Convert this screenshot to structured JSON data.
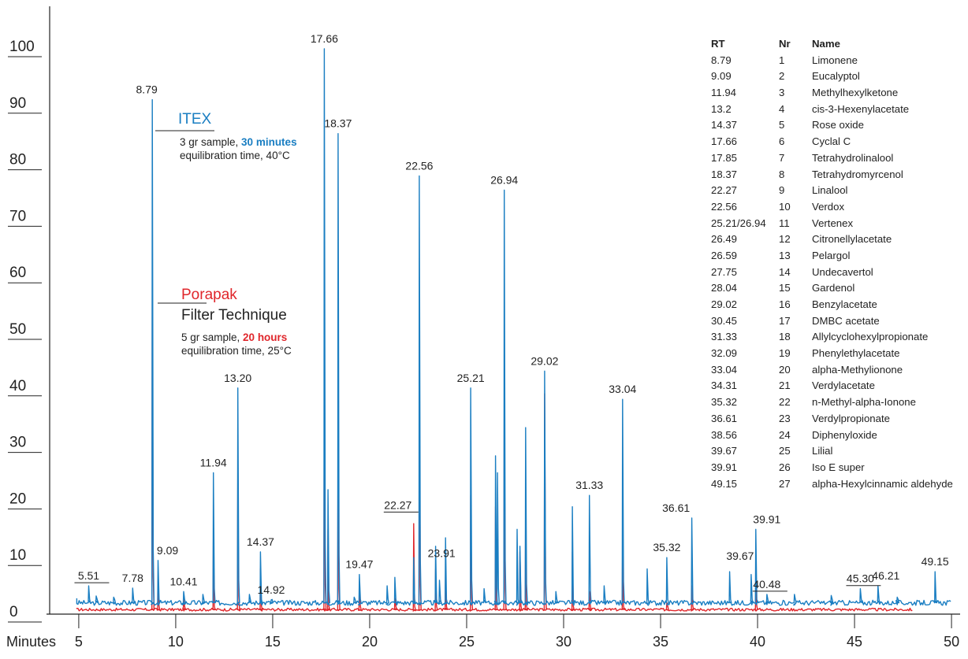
{
  "colors": {
    "itex": "#1a7ec2",
    "porapak": "#e0262b",
    "axis": "#222222"
  },
  "chart_data": {
    "type": "line",
    "xlabel": "Minutes",
    "xticks": [
      5,
      10,
      15,
      20,
      25,
      30,
      35,
      40,
      45,
      50
    ],
    "yticks": [
      0,
      10,
      20,
      30,
      40,
      50,
      60,
      70,
      80,
      90,
      100
    ],
    "xlim": [
      3.5,
      50.2
    ],
    "ylim": [
      0,
      100
    ],
    "series": [
      {
        "name": "ITEX",
        "baseline": 2,
        "peaks": [
          [
            5.51,
            5
          ],
          [
            5.9,
            3.2
          ],
          [
            6.8,
            3
          ],
          [
            7.78,
            4.6
          ],
          [
            8.79,
            91
          ],
          [
            9.09,
            9.5
          ],
          [
            10.41,
            4
          ],
          [
            11.4,
            3.5
          ],
          [
            11.94,
            25
          ],
          [
            13.2,
            40
          ],
          [
            13.8,
            3.5
          ],
          [
            14.37,
            11
          ],
          [
            14.92,
            2.5
          ],
          [
            17.66,
            100
          ],
          [
            17.85,
            22
          ],
          [
            18.37,
            85
          ],
          [
            19.2,
            3
          ],
          [
            19.47,
            7
          ],
          [
            20.9,
            5
          ],
          [
            21.3,
            6.5
          ],
          [
            22.27,
            10
          ],
          [
            22.56,
            77.5
          ],
          [
            23.4,
            12
          ],
          [
            23.6,
            6
          ],
          [
            23.91,
            13.5
          ],
          [
            25.21,
            40
          ],
          [
            25.9,
            4.5
          ],
          [
            26.49,
            28
          ],
          [
            26.59,
            25
          ],
          [
            26.94,
            75
          ],
          [
            27.6,
            15
          ],
          [
            27.75,
            12
          ],
          [
            28.04,
            33
          ],
          [
            29.02,
            43
          ],
          [
            29.6,
            4
          ],
          [
            30.45,
            19
          ],
          [
            31.33,
            21
          ],
          [
            32.09,
            5
          ],
          [
            33.04,
            38
          ],
          [
            34.31,
            8
          ],
          [
            35.32,
            10
          ],
          [
            36.61,
            17
          ],
          [
            38.56,
            7.5
          ],
          [
            39.67,
            7
          ],
          [
            39.91,
            15
          ],
          [
            40.48,
            3.5
          ],
          [
            41.9,
            3.5
          ],
          [
            43.8,
            3.3
          ],
          [
            45.3,
            4.5
          ],
          [
            46.21,
            5
          ],
          [
            47.2,
            3
          ],
          [
            49.15,
            7.5
          ]
        ]
      },
      {
        "name": "Porapak",
        "baseline": 0.8,
        "peaks": [
          [
            8.79,
            58
          ],
          [
            9.09,
            6
          ],
          [
            10.41,
            2.5
          ],
          [
            11.94,
            13.5
          ],
          [
            13.2,
            24
          ],
          [
            14.37,
            8
          ],
          [
            17.66,
            44
          ],
          [
            17.85,
            15
          ],
          [
            18.37,
            36
          ],
          [
            19.47,
            4
          ],
          [
            21.3,
            2.8
          ],
          [
            22.27,
            16
          ],
          [
            22.56,
            43
          ],
          [
            23.4,
            8
          ],
          [
            23.91,
            7
          ],
          [
            25.21,
            21
          ],
          [
            26.49,
            19
          ],
          [
            26.94,
            36
          ],
          [
            27.75,
            11
          ],
          [
            28.04,
            18
          ],
          [
            29.02,
            39
          ],
          [
            30.45,
            11
          ],
          [
            31.33,
            4
          ],
          [
            33.04,
            12
          ],
          [
            35.32,
            2
          ],
          [
            36.61,
            5
          ],
          [
            39.91,
            5
          ]
        ]
      }
    ],
    "peak_labels": [
      {
        "text": "5.51",
        "x": 5.51,
        "y": 5,
        "dx": 0,
        "under": true
      },
      {
        "text": "7.78",
        "x": 7.78,
        "y": 4.6,
        "dx": 0,
        "under": false
      },
      {
        "text": "8.79",
        "x": 8.79,
        "y": 91,
        "dx": -7,
        "under": false
      },
      {
        "text": "9.09",
        "x": 9.09,
        "y": 9.5,
        "dx": 12,
        "under": false
      },
      {
        "text": "10.41",
        "x": 10.41,
        "y": 4,
        "dx": 0,
        "under": false
      },
      {
        "text": "11.94",
        "x": 11.94,
        "y": 25,
        "dx": 0,
        "under": false
      },
      {
        "text": "13.20",
        "x": 13.2,
        "y": 40,
        "dx": 0,
        "under": false
      },
      {
        "text": "14.37",
        "x": 14.37,
        "y": 11,
        "dx": 0,
        "under": false
      },
      {
        "text": "14.92",
        "x": 14.92,
        "y": 2.5,
        "dx": 0,
        "under": false
      },
      {
        "text": "17.66",
        "x": 17.66,
        "y": 100,
        "dx": 0,
        "under": false
      },
      {
        "text": "18.37",
        "x": 18.37,
        "y": 85,
        "dx": 0,
        "under": false
      },
      {
        "text": "19.47",
        "x": 19.47,
        "y": 7,
        "dx": 0,
        "under": false
      },
      {
        "text": "22.27",
        "x": 22.27,
        "y": 17.5,
        "dx": -20,
        "under": true
      },
      {
        "text": "22.56",
        "x": 22.56,
        "y": 77.5,
        "dx": 0,
        "under": false
      },
      {
        "text": "23.91",
        "x": 23.91,
        "y": 9,
        "dx": -5,
        "under": false
      },
      {
        "text": "25.21",
        "x": 25.21,
        "y": 40,
        "dx": 0,
        "under": false
      },
      {
        "text": "26.94",
        "x": 26.94,
        "y": 75,
        "dx": 0,
        "under": false
      },
      {
        "text": "29.02",
        "x": 29.02,
        "y": 43,
        "dx": 0,
        "under": false
      },
      {
        "text": "31.33",
        "x": 31.33,
        "y": 21,
        "dx": 0,
        "under": false
      },
      {
        "text": "33.04",
        "x": 33.04,
        "y": 38,
        "dx": 0,
        "under": false
      },
      {
        "text": "35.32",
        "x": 35.32,
        "y": 10,
        "dx": 0,
        "under": false
      },
      {
        "text": "36.61",
        "x": 36.61,
        "y": 17,
        "dx": -20,
        "under": false
      },
      {
        "text": "39.67",
        "x": 39.67,
        "y": 8.5,
        "dx": -14,
        "under": false
      },
      {
        "text": "39.91",
        "x": 39.91,
        "y": 15,
        "dx": 14,
        "under": false
      },
      {
        "text": "40.48",
        "x": 40.48,
        "y": 3.5,
        "dx": 0,
        "under": true
      },
      {
        "text": "45.30",
        "x": 45.3,
        "y": 4.5,
        "dx": 0,
        "under": true
      },
      {
        "text": "46.21",
        "x": 46.21,
        "y": 5,
        "dx": 10,
        "under": false
      },
      {
        "text": "49.15",
        "x": 49.15,
        "y": 7.5,
        "dx": 0,
        "under": false
      }
    ]
  },
  "legend": {
    "itex": {
      "title": "ITEX",
      "line1_pre": "3 gr sample, ",
      "line1_bold": "30 minutes",
      "line2": "equilibration time, 40°C"
    },
    "porapak": {
      "title": "Porapak",
      "subtitle": "Filter Technique",
      "line1_pre": "5 gr sample, ",
      "line1_bold": "20 hours",
      "line2": "equilibration time, 25°C"
    }
  },
  "table": {
    "headers": [
      "RT",
      "Nr",
      "Name"
    ],
    "rows": [
      [
        "8.79",
        "1",
        "Limonene"
      ],
      [
        "9.09",
        "2",
        "Eucalyptol"
      ],
      [
        "11.94",
        "3",
        "Methylhexylketone"
      ],
      [
        "13.2",
        "4",
        "cis-3-Hexenylacetate"
      ],
      [
        "14.37",
        "5",
        "Rose oxide"
      ],
      [
        "17.66",
        "6",
        "Cyclal C"
      ],
      [
        "17.85",
        "7",
        "Tetrahydrolinalool"
      ],
      [
        "18.37",
        "8",
        "Tetrahydromyrcenol"
      ],
      [
        "22.27",
        "9",
        "Linalool"
      ],
      [
        "22.56",
        "10",
        "Verdox"
      ],
      [
        "25.21/26.94",
        "11",
        "Vertenex"
      ],
      [
        "26.49",
        "12",
        "Citronellylacetate"
      ],
      [
        "26.59",
        "13",
        "Pelargol"
      ],
      [
        "27.75",
        "14",
        "Undecavertol"
      ],
      [
        "28.04",
        "15",
        "Gardenol"
      ],
      [
        "29.02",
        "16",
        "Benzylacetate"
      ],
      [
        "30.45",
        "17",
        "DMBC acetate"
      ],
      [
        "31.33",
        "18",
        "Allylcyclohexylpropionate"
      ],
      [
        "32.09",
        "19",
        "Phenylethylacetate"
      ],
      [
        "33.04",
        "20",
        "alpha-Methylionone"
      ],
      [
        "34.31",
        "21",
        "Verdylacetate"
      ],
      [
        "35.32",
        "22",
        "n-Methyl-alpha-Ionone"
      ],
      [
        "36.61",
        "23",
        "Verdylpropionate"
      ],
      [
        "38.56",
        "24",
        "Diphenyloxide"
      ],
      [
        "39.67",
        "25",
        "Lilial"
      ],
      [
        "39.91",
        "26",
        "Iso E super"
      ],
      [
        "49.15",
        "27",
        "alpha-Hexylcinnamic aldehyde"
      ]
    ]
  }
}
